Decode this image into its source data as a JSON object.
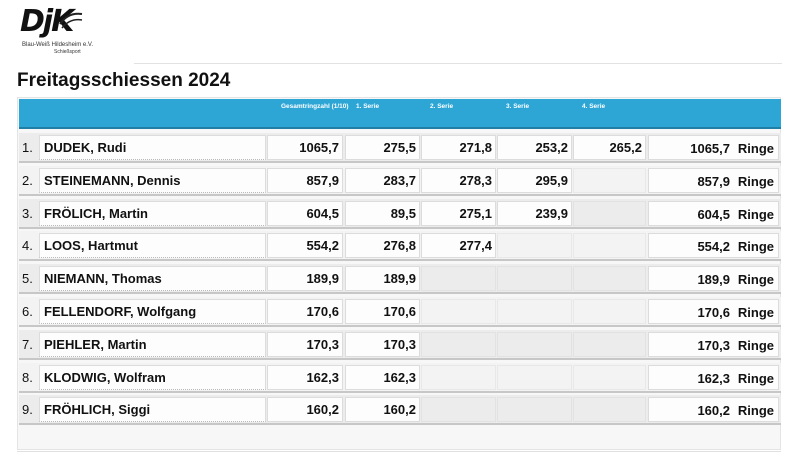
{
  "logo": {
    "mark": "DjK",
    "club_line": "Blau-Weiß Hildesheim e.V.",
    "dept_line": "Schießsport",
    "accent_color": "#1b1b1b"
  },
  "page": {
    "title": "Freitagsschiessen 2024"
  },
  "table": {
    "header_color": "#2da6d6",
    "headers": [
      "Gesamtringzahl (1/10)",
      "1. Serie",
      "2. Serie",
      "3. Serie",
      "4. Serie"
    ],
    "unit": "Ringe",
    "rows": [
      {
        "rank": "1.",
        "name": "DUDEK, Rudi",
        "total": "1065,7",
        "s1": "275,5",
        "s2": "271,8",
        "s3": "253,2",
        "s4": "265,2",
        "sum": "1065,7"
      },
      {
        "rank": "2.",
        "name": "STEINEMANN, Dennis",
        "total": "857,9",
        "s1": "283,7",
        "s2": "278,3",
        "s3": "295,9",
        "s4": "",
        "sum": "857,9"
      },
      {
        "rank": "3.",
        "name": "FRÖLICH, Martin",
        "total": "604,5",
        "s1": "89,5",
        "s2": "275,1",
        "s3": "239,9",
        "s4": "",
        "sum": "604,5"
      },
      {
        "rank": "4.",
        "name": "LOOS, Hartmut",
        "total": "554,2",
        "s1": "276,8",
        "s2": "277,4",
        "s3": "",
        "s4": "",
        "sum": "554,2"
      },
      {
        "rank": "5.",
        "name": "NIEMANN, Thomas",
        "total": "189,9",
        "s1": "189,9",
        "s2": "",
        "s3": "",
        "s4": "",
        "sum": "189,9"
      },
      {
        "rank": "6.",
        "name": "FELLENDORF, Wolfgang",
        "total": "170,6",
        "s1": "170,6",
        "s2": "",
        "s3": "",
        "s4": "",
        "sum": "170,6"
      },
      {
        "rank": "7.",
        "name": "PIEHLER, Martin",
        "total": "170,3",
        "s1": "170,3",
        "s2": "",
        "s3": "",
        "s4": "",
        "sum": "170,3"
      },
      {
        "rank": "8.",
        "name": "KLODWIG, Wolfram",
        "total": "162,3",
        "s1": "162,3",
        "s2": "",
        "s3": "",
        "s4": "",
        "sum": "162,3"
      },
      {
        "rank": "9.",
        "name": "FRÖHLICH, Siggi",
        "total": "160,2",
        "s1": "160,2",
        "s2": "",
        "s3": "",
        "s4": "",
        "sum": "160,2"
      }
    ]
  }
}
